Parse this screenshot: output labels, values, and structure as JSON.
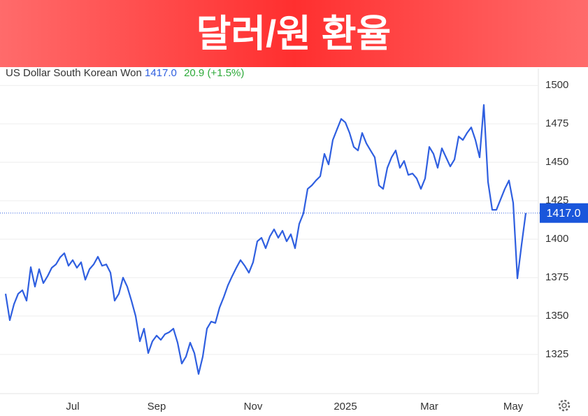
{
  "chart_data": {
    "type": "line",
    "title": "달러/원 환율",
    "series": [
      {
        "name": "US Dollar South Korean Won",
        "color": "#2f5fe0",
        "values": [
          1364.5,
          1347.3,
          1357.7,
          1364.5,
          1366.8,
          1360,
          1381.8,
          1369.1,
          1380.5,
          1371.4,
          1375.9,
          1381.4,
          1383.6,
          1388.2,
          1390.9,
          1382.7,
          1386.4,
          1381.4,
          1385,
          1373.6,
          1380.5,
          1383.6,
          1388.6,
          1382.7,
          1383.6,
          1378.2,
          1360,
          1364.5,
          1375,
          1369.1,
          1360,
          1350,
          1333.6,
          1341.8,
          1325.9,
          1333.6,
          1337.3,
          1334.5,
          1338.2,
          1339.5,
          1341.8,
          1332.7,
          1319.1,
          1323.6,
          1332.7,
          1325.9,
          1312.3,
          1323.6,
          1341.8,
          1346.4,
          1345.5,
          1355.5,
          1362.3,
          1370,
          1375.9,
          1381.4,
          1386.4,
          1382.7,
          1378.2,
          1385,
          1398.6,
          1400.9,
          1394.1,
          1401.8,
          1406.4,
          1400.9,
          1405.5,
          1398.6,
          1403.2,
          1394.1,
          1410,
          1416.8,
          1432.7,
          1435,
          1438.2,
          1440.9,
          1455.5,
          1448.6,
          1464.5,
          1471.4,
          1478.2,
          1475.9,
          1469.1,
          1460,
          1457.7,
          1469.1,
          1462.3,
          1457.7,
          1453.2,
          1435,
          1432.7,
          1446.4,
          1453.2,
          1457.7,
          1446.4,
          1450.9,
          1441.8,
          1442.7,
          1439.5,
          1432.7,
          1439.5,
          1460,
          1455.5,
          1446.4,
          1459.1,
          1453.2,
          1447.3,
          1451.8,
          1466.8,
          1464.5,
          1469.1,
          1472.7,
          1464.5,
          1453.2,
          1487.3,
          1437.3,
          1419.1,
          1419.1,
          1425.9,
          1432.7,
          1438.2,
          1423.6,
          1374.5,
          1396.4,
          1417
        ]
      }
    ],
    "categories": [
      null,
      null,
      null,
      null,
      null,
      null,
      null,
      null,
      null,
      null,
      null,
      null,
      null,
      null,
      null,
      null,
      "Jul",
      null,
      null,
      null,
      null,
      null,
      null,
      null,
      null,
      null,
      null,
      null,
      null,
      null,
      null,
      null,
      null,
      null,
      null,
      null,
      "Sep",
      null,
      null,
      null,
      null,
      null,
      null,
      null,
      null,
      null,
      null,
      null,
      null,
      null,
      null,
      null,
      null,
      null,
      null,
      null,
      null,
      null,
      null,
      "Nov",
      null,
      null,
      null,
      null,
      null,
      null,
      null,
      null,
      null,
      null,
      null,
      null,
      null,
      null,
      null,
      null,
      null,
      null,
      null,
      null,
      null,
      "2025",
      null,
      null,
      null,
      null,
      null,
      null,
      null,
      null,
      null,
      null,
      null,
      null,
      null,
      null,
      null,
      null,
      null,
      null,
      null,
      "Mar",
      null,
      null,
      null,
      null,
      null,
      null,
      null,
      null,
      null,
      null,
      null,
      null,
      null,
      null,
      null,
      null,
      null,
      null,
      null,
      "May",
      null,
      null,
      null
    ],
    "current": {
      "value": 1417,
      "label": "1417.0"
    },
    "change": 20.9,
    "change_percent": "(+1.5%)",
    "ylim": [
      1300,
      1511
    ],
    "yticks": [
      1325,
      1350,
      1375,
      1400,
      1425,
      1450,
      1475,
      1500
    ],
    "grid": true
  }
}
